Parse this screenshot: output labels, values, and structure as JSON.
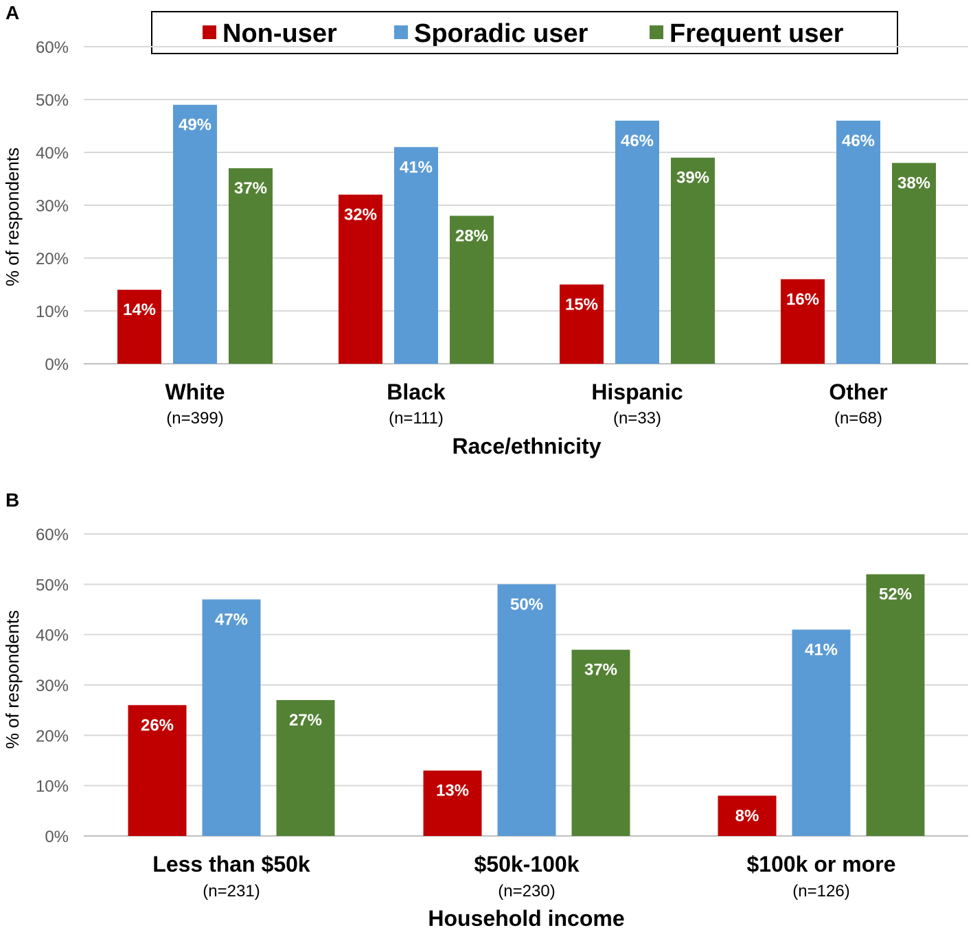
{
  "legend": [
    {
      "label": "Non-user",
      "color": "#C00000"
    },
    {
      "label": "Sporadic user",
      "color": "#5B9BD5"
    },
    {
      "label": "Frequent user",
      "color": "#548235"
    }
  ],
  "chart_data": [
    {
      "type": "bar",
      "panel": "A",
      "title": "",
      "xlabel": "Race/ethnicity",
      "ylabel": "% of respondents",
      "ylim": [
        0,
        60
      ],
      "yticks": [
        "0%",
        "10%",
        "20%",
        "30%",
        "40%",
        "50%",
        "60%"
      ],
      "grid": true,
      "legend_position": "top",
      "categories": [
        "White",
        "Black",
        "Hispanic",
        "Other"
      ],
      "category_n": [
        "(n=399)",
        "(n=111)",
        "(n=33)",
        "(n=68)"
      ],
      "series": [
        {
          "name": "Non-user",
          "values": [
            14,
            32,
            15,
            16
          ]
        },
        {
          "name": "Sporadic user",
          "values": [
            49,
            41,
            46,
            46
          ]
        },
        {
          "name": "Frequent user",
          "values": [
            37,
            28,
            39,
            38
          ]
        }
      ]
    },
    {
      "type": "bar",
      "panel": "B",
      "title": "",
      "xlabel": "Household income",
      "ylabel": "% of respondents",
      "ylim": [
        0,
        60
      ],
      "yticks": [
        "0%",
        "10%",
        "20%",
        "30%",
        "40%",
        "50%",
        "60%"
      ],
      "grid": true,
      "categories": [
        "Less than $50k",
        "$50k-100k",
        "$100k or more"
      ],
      "category_n": [
        "(n=231)",
        "(n=230)",
        "(n=126)"
      ],
      "series": [
        {
          "name": "Non-user",
          "values": [
            26,
            13,
            8
          ]
        },
        {
          "name": "Sporadic user",
          "values": [
            47,
            50,
            41
          ]
        },
        {
          "name": "Frequent user",
          "values": [
            27,
            37,
            52
          ]
        }
      ]
    }
  ]
}
